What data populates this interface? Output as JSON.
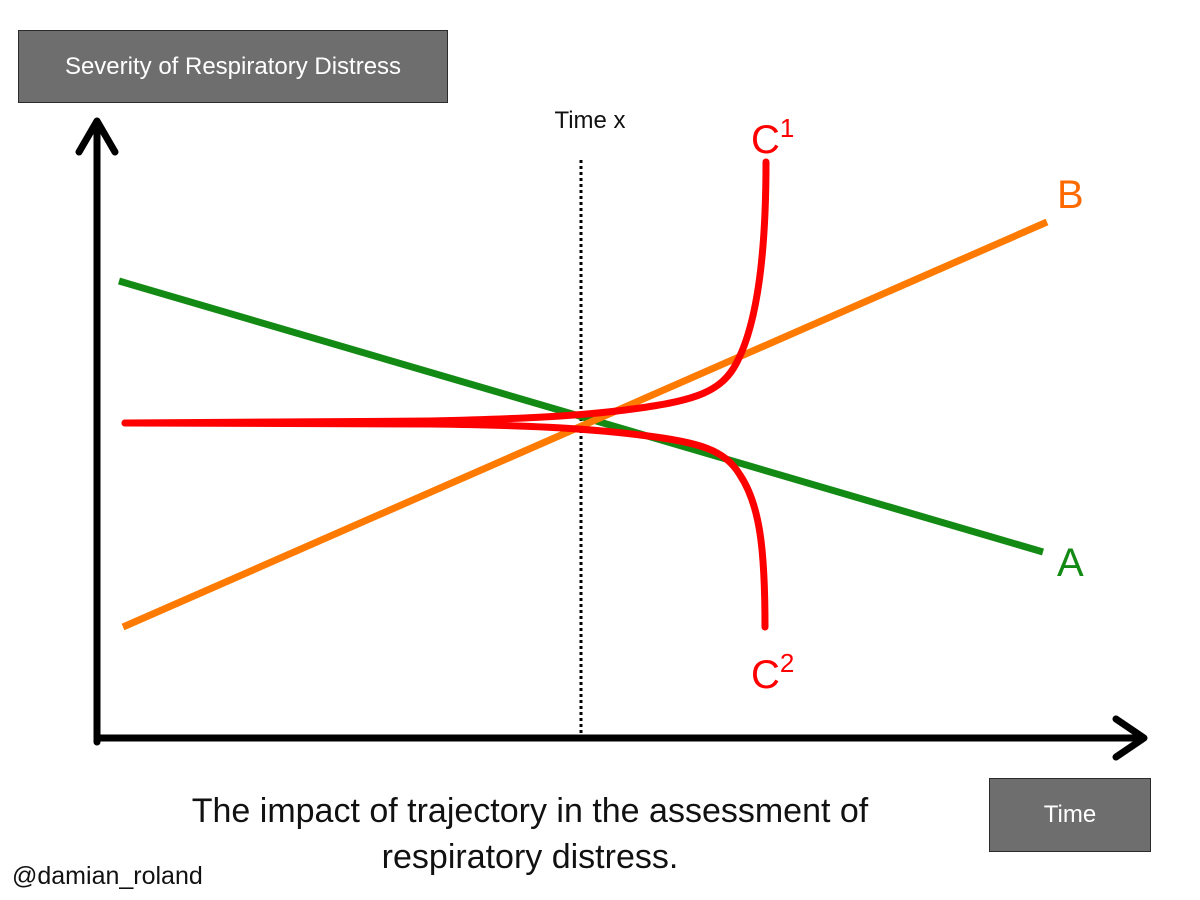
{
  "y_axis_label": "Severity of Respiratory Distress",
  "x_axis_label": "Time",
  "time_marker_label": "Time x",
  "caption": {
    "line1": "The impact of trajectory in the assessment of",
    "line2": "respiratory distress."
  },
  "credit": "@damian_roland",
  "lines": {
    "A": {
      "label": "A",
      "color": "#138a14"
    },
    "B": {
      "label": "B",
      "color": "#ff7a00"
    },
    "C1": {
      "label": "C",
      "sup": "1",
      "color": "#ff0000"
    },
    "C2": {
      "label": "C",
      "sup": "2",
      "color": "#ff0000"
    }
  }
}
